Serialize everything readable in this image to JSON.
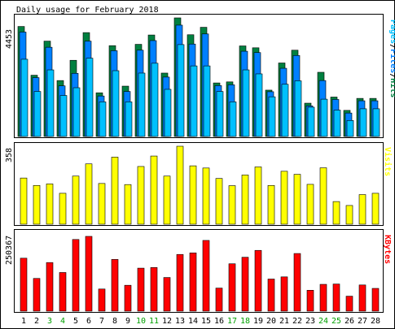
{
  "title": "Daily usage for February 2018",
  "colors": {
    "hits": "#008040",
    "files": "#0080ff",
    "pages": "#00c0ff",
    "visits": "#ffff00",
    "kbytes": "#ff0000",
    "weekend_label": "#00a000",
    "weekday_label": "#000000",
    "panel_bg": "#ffffff",
    "frame": "#000000"
  },
  "chart_data": [
    {
      "type": "bar",
      "title": "Daily usage for February 2018",
      "ylabel": "Pages/Files/Hits",
      "ymax_label": "4453",
      "ylim": [
        0,
        4453
      ],
      "categories": [
        "1",
        "2",
        "3",
        "4",
        "5",
        "6",
        "7",
        "8",
        "9",
        "10",
        "11",
        "12",
        "13",
        "14",
        "15",
        "16",
        "17",
        "18",
        "19",
        "20",
        "21",
        "22",
        "23",
        "24",
        "25",
        "26",
        "27",
        "28"
      ],
      "weekend_days": [
        "3",
        "4",
        "10",
        "11",
        "17",
        "18",
        "24",
        "25"
      ],
      "series": [
        {
          "name": "Hits",
          "values": [
            4130,
            2300,
            3580,
            2100,
            2860,
            3900,
            1640,
            3410,
            1890,
            3460,
            3810,
            2380,
            4453,
            3820,
            4100,
            2010,
            2050,
            3400,
            3330,
            1740,
            2760,
            3240,
            1250,
            2410,
            1480,
            980,
            1430,
            1430
          ]
        },
        {
          "name": "Files",
          "values": [
            3920,
            2210,
            3350,
            1900,
            2370,
            3580,
            1520,
            3220,
            1690,
            3240,
            3600,
            2230,
            4180,
            3470,
            3850,
            1910,
            1940,
            3200,
            3150,
            1680,
            2560,
            3040,
            1150,
            2100,
            1390,
            880,
            1340,
            1340
          ]
        },
        {
          "name": "Pages",
          "values": [
            2900,
            1690,
            2500,
            1540,
            1830,
            2940,
            1300,
            2470,
            1300,
            2380,
            2750,
            1770,
            3450,
            2650,
            2650,
            1690,
            1300,
            2500,
            2350,
            1490,
            1960,
            2090,
            1100,
            1400,
            990,
            600,
            1040,
            1040
          ]
        }
      ]
    },
    {
      "type": "bar",
      "ylabel": "Visits",
      "ymax_label": "358",
      "ylim": [
        0,
        358
      ],
      "categories": [
        "1",
        "2",
        "3",
        "4",
        "5",
        "6",
        "7",
        "8",
        "9",
        "10",
        "11",
        "12",
        "13",
        "14",
        "15",
        "16",
        "17",
        "18",
        "19",
        "20",
        "21",
        "22",
        "23",
        "24",
        "25",
        "26",
        "27",
        "28"
      ],
      "series": [
        {
          "name": "Visits",
          "values": [
            212,
            178,
            185,
            142,
            221,
            277,
            187,
            308,
            182,
            265,
            313,
            221,
            358,
            268,
            258,
            210,
            177,
            226,
            263,
            178,
            243,
            229,
            183,
            259,
            104,
            86,
            136,
            142
          ]
        }
      ]
    },
    {
      "type": "bar",
      "ylabel": "KBytes",
      "ymax_label": "250367",
      "ylim": [
        0,
        250367
      ],
      "categories": [
        "1",
        "2",
        "3",
        "4",
        "5",
        "6",
        "7",
        "8",
        "9",
        "10",
        "11",
        "12",
        "13",
        "14",
        "15",
        "16",
        "17",
        "18",
        "19",
        "20",
        "21",
        "22",
        "23",
        "24",
        "25",
        "26",
        "27",
        "28"
      ],
      "series": [
        {
          "name": "KBytes",
          "values": [
            170000,
            105000,
            156000,
            124000,
            230000,
            240000,
            71000,
            166000,
            83000,
            138000,
            140000,
            108000,
            182000,
            187000,
            227000,
            74000,
            152000,
            173000,
            195000,
            103000,
            110000,
            185000,
            67000,
            86000,
            87000,
            48000,
            84000,
            73000
          ]
        }
      ]
    }
  ]
}
